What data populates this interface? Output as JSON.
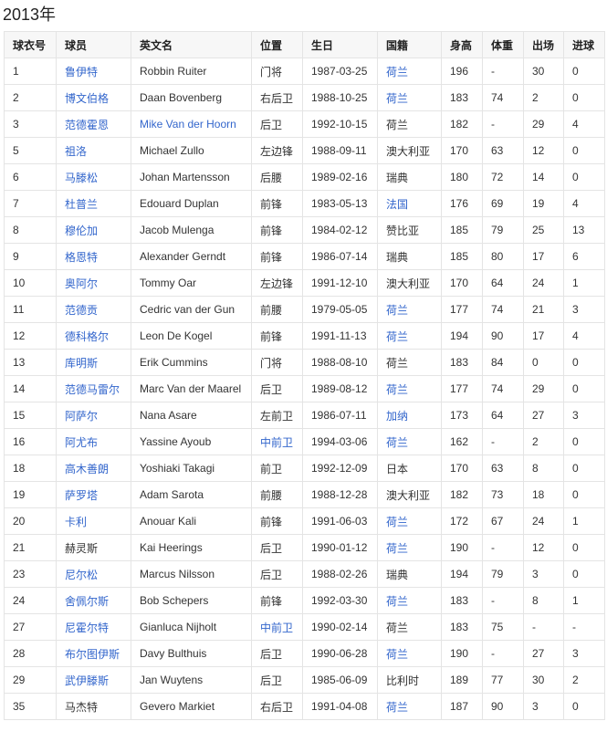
{
  "title": "2013年",
  "link_color": "#3366cc",
  "headers": [
    "球衣号",
    "球员",
    "英文名",
    "位置",
    "生日",
    "国籍",
    "身高",
    "体重",
    "出场",
    "进球"
  ],
  "rows": [
    {
      "cells": [
        "1",
        "鲁伊特",
        "Robbin Ruiter",
        "门将",
        "1987-03-25",
        "荷兰",
        "196",
        "-",
        "30",
        "0"
      ],
      "links": [
        1,
        5
      ]
    },
    {
      "cells": [
        "2",
        "博文伯格",
        "Daan Bovenberg",
        "右后卫",
        "1988-10-25",
        "荷兰",
        "183",
        "74",
        "2",
        "0"
      ],
      "links": [
        1,
        5
      ]
    },
    {
      "cells": [
        "3",
        "范德霍恩",
        "Mike Van der Hoorn",
        "后卫",
        "1992-10-15",
        "荷兰",
        "182",
        "-",
        "29",
        "4"
      ],
      "links": [
        1,
        2
      ]
    },
    {
      "cells": [
        "5",
        "祖洛",
        "Michael Zullo",
        "左边锋",
        "1988-09-11",
        "澳大利亚",
        "170",
        "63",
        "12",
        "0"
      ],
      "links": [
        1
      ]
    },
    {
      "cells": [
        "6",
        "马滕松",
        "Johan Martensson",
        "后腰",
        "1989-02-16",
        "瑞典",
        "180",
        "72",
        "14",
        "0"
      ],
      "links": [
        1
      ]
    },
    {
      "cells": [
        "7",
        "杜普兰",
        "Edouard Duplan",
        "前锋",
        "1983-05-13",
        "法国",
        "176",
        "69",
        "19",
        "4"
      ],
      "links": [
        1,
        5
      ]
    },
    {
      "cells": [
        "8",
        "穆伦加",
        "Jacob Mulenga",
        "前锋",
        "1984-02-12",
        "赞比亚",
        "185",
        "79",
        "25",
        "13"
      ],
      "links": [
        1
      ]
    },
    {
      "cells": [
        "9",
        "格恩特",
        "Alexander Gerndt",
        "前锋",
        "1986-07-14",
        "瑞典",
        "185",
        "80",
        "17",
        "6"
      ],
      "links": [
        1
      ]
    },
    {
      "cells": [
        "10",
        "奥阿尔",
        "Tommy Oar",
        "左边锋",
        "1991-12-10",
        "澳大利亚",
        "170",
        "64",
        "24",
        "1"
      ],
      "links": [
        1
      ]
    },
    {
      "cells": [
        "11",
        "范德贡",
        "Cedric van der Gun",
        "前腰",
        "1979-05-05",
        "荷兰",
        "177",
        "74",
        "21",
        "3"
      ],
      "links": [
        1,
        5
      ]
    },
    {
      "cells": [
        "12",
        "德科格尔",
        "Leon De Kogel",
        "前锋",
        "1991-11-13",
        "荷兰",
        "194",
        "90",
        "17",
        "4"
      ],
      "links": [
        1,
        5
      ]
    },
    {
      "cells": [
        "13",
        "库明斯",
        "Erik Cummins",
        "门将",
        "1988-08-10",
        "荷兰",
        "183",
        "84",
        "0",
        "0"
      ],
      "links": [
        1
      ]
    },
    {
      "cells": [
        "14",
        "范德马雷尔",
        "Marc Van der Maarel",
        "后卫",
        "1989-08-12",
        "荷兰",
        "177",
        "74",
        "29",
        "0"
      ],
      "links": [
        1,
        5
      ]
    },
    {
      "cells": [
        "15",
        "阿萨尔",
        "Nana Asare",
        "左前卫",
        "1986-07-11",
        "加纳",
        "173",
        "64",
        "27",
        "3"
      ],
      "links": [
        1,
        5
      ]
    },
    {
      "cells": [
        "16",
        "阿尤布",
        "Yassine Ayoub",
        "中前卫",
        "1994-03-06",
        "荷兰",
        "162",
        "-",
        "2",
        "0"
      ],
      "links": [
        1,
        3,
        5
      ]
    },
    {
      "cells": [
        "18",
        "高木善朗",
        "Yoshiaki Takagi",
        "前卫",
        "1992-12-09",
        "日本",
        "170",
        "63",
        "8",
        "0"
      ],
      "links": [
        1
      ]
    },
    {
      "cells": [
        "19",
        "萨罗塔",
        "Adam Sarota",
        "前腰",
        "1988-12-28",
        "澳大利亚",
        "182",
        "73",
        "18",
        "0"
      ],
      "links": [
        1
      ]
    },
    {
      "cells": [
        "20",
        "卡利",
        "Anouar Kali",
        "前锋",
        "1991-06-03",
        "荷兰",
        "172",
        "67",
        "24",
        "1"
      ],
      "links": [
        1,
        5
      ]
    },
    {
      "cells": [
        "21",
        "赫灵斯",
        "Kai Heerings",
        "后卫",
        "1990-01-12",
        "荷兰",
        "190",
        "-",
        "12",
        "0"
      ],
      "links": [
        5
      ]
    },
    {
      "cells": [
        "23",
        "尼尔松",
        "Marcus Nilsson",
        "后卫",
        "1988-02-26",
        "瑞典",
        "194",
        "79",
        "3",
        "0"
      ],
      "links": [
        1
      ]
    },
    {
      "cells": [
        "24",
        "舍佩尔斯",
        "Bob Schepers",
        "前锋",
        "1992-03-30",
        "荷兰",
        "183",
        "-",
        "8",
        "1"
      ],
      "links": [
        1,
        5
      ]
    },
    {
      "cells": [
        "27",
        "尼霍尔特",
        "Gianluca Nijholt",
        "中前卫",
        "1990-02-14",
        "荷兰",
        "183",
        "75",
        "-",
        "-"
      ],
      "links": [
        1,
        3
      ]
    },
    {
      "cells": [
        "28",
        "布尔图伊斯",
        "Davy Bulthuis",
        "后卫",
        "1990-06-28",
        "荷兰",
        "190",
        "-",
        "27",
        "3"
      ],
      "links": [
        1,
        5
      ]
    },
    {
      "cells": [
        "29",
        "武伊滕斯",
        "Jan Wuytens",
        "后卫",
        "1985-06-09",
        "比利时",
        "189",
        "77",
        "30",
        "2"
      ],
      "links": [
        1
      ]
    },
    {
      "cells": [
        "35",
        "马杰特",
        "Gevero Markiet",
        "右后卫",
        "1991-04-08",
        "荷兰",
        "187",
        "90",
        "3",
        "0"
      ],
      "links": [
        5
      ]
    }
  ]
}
